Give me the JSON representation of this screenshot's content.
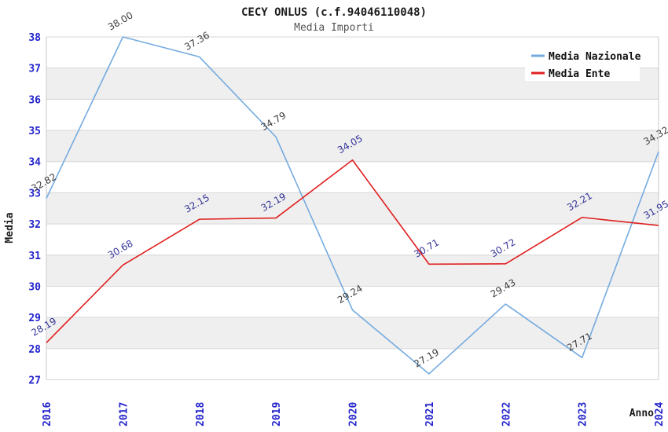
{
  "window": {
    "title": "CECY ONLUS (c.f.94046110048)"
  },
  "chart_data": {
    "type": "line",
    "title": "CECY ONLUS (c.f.94046110048)",
    "subtitle": "Media Importi",
    "xlabel": "Anno",
    "ylabel": "Media",
    "categories": [
      "2016",
      "2017",
      "2018",
      "2019",
      "2020",
      "2021",
      "2022",
      "2023",
      "2024"
    ],
    "series": [
      {
        "name": "Media Nazionale",
        "color": "#74abdf",
        "label_color": "#3d3d3d",
        "values": [
          32.82,
          38.0,
          37.36,
          34.79,
          29.24,
          27.19,
          29.43,
          27.71,
          34.32
        ]
      },
      {
        "name": "Media Ente",
        "color": "#e01f1f",
        "label_color": "#333399",
        "values": [
          28.19,
          30.68,
          32.15,
          32.19,
          34.05,
          30.71,
          30.72,
          32.21,
          31.95
        ]
      }
    ],
    "ylim": [
      27,
      38
    ],
    "ytick_step": 1,
    "grid": "horizontal",
    "band_fill": "alternate",
    "legend_position": "top-right"
  },
  "colors": {
    "band": "#efefef",
    "gridline": "#d6d6d6",
    "plot_border": "#c9c9c9",
    "tick_label": "#2323cc",
    "legend_bg": "#ffffff"
  }
}
